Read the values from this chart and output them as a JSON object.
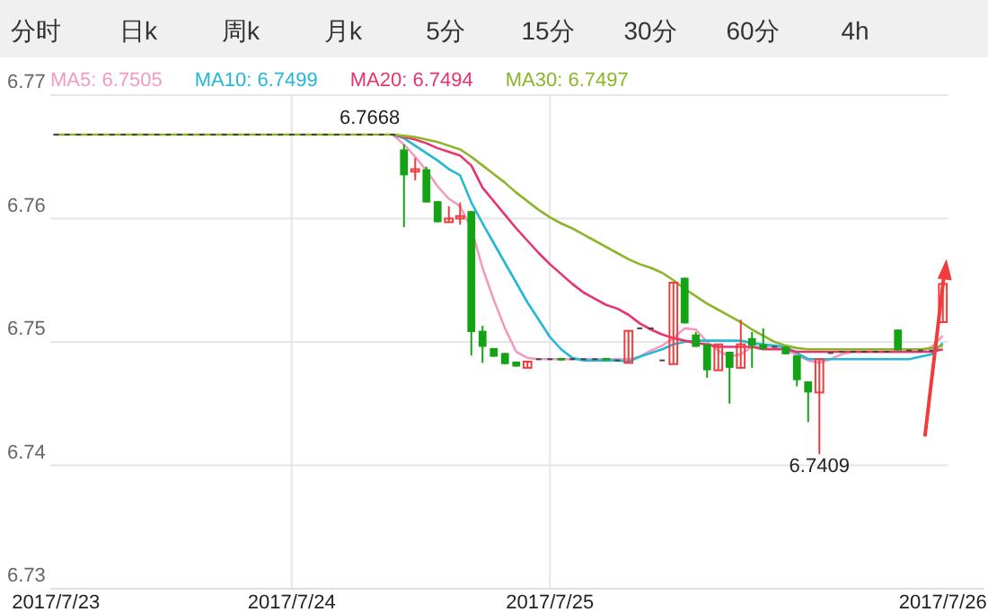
{
  "chart_data": [
    {
      "type": "other",
      "annotations": [
        "分时",
        "日k",
        "周k",
        "月k",
        "5分",
        "15分",
        "30分",
        "60分",
        "4h"
      ]
    },
    {
      "type": "candlestick",
      "ylim": [
        6.73,
        6.77
      ],
      "yticks": [
        6.73,
        6.74,
        6.75,
        6.76,
        6.77
      ],
      "grid": true,
      "legend": "top left",
      "categories": [
        "2017/7/23",
        null,
        null,
        null,
        null,
        null,
        null,
        null,
        null,
        null,
        null,
        null,
        null,
        null,
        null,
        null,
        null,
        null,
        null,
        null,
        null,
        "2017/7/24",
        null,
        null,
        null,
        null,
        null,
        null,
        null,
        null,
        null,
        null,
        null,
        null,
        null,
        null,
        null,
        null,
        null,
        null,
        null,
        null,
        null,
        null,
        "2017/7/25",
        null,
        null,
        null,
        null,
        null,
        null,
        null,
        null,
        null,
        null,
        null,
        null,
        null,
        null,
        null,
        null,
        null,
        null,
        null,
        null,
        null,
        null,
        null,
        null,
        null,
        null,
        null,
        null,
        null,
        null,
        null,
        null,
        null,
        null,
        "2017/7/26"
      ],
      "ohlc": [
        [
          6.7668,
          6.7668,
          6.7668,
          6.7668
        ],
        [
          6.7668,
          6.7668,
          6.7668,
          6.7668
        ],
        [
          6.7668,
          6.7668,
          6.7668,
          6.7668
        ],
        [
          6.7668,
          6.7668,
          6.7668,
          6.7668
        ],
        [
          6.7668,
          6.7668,
          6.7668,
          6.7668
        ],
        [
          6.7668,
          6.7668,
          6.7668,
          6.7668
        ],
        [
          6.7668,
          6.7668,
          6.7668,
          6.7668
        ],
        [
          6.7668,
          6.7668,
          6.7668,
          6.7668
        ],
        [
          6.7668,
          6.7668,
          6.7668,
          6.7668
        ],
        [
          6.7668,
          6.7668,
          6.7668,
          6.7668
        ],
        [
          6.7668,
          6.7668,
          6.7668,
          6.7668
        ],
        [
          6.7668,
          6.7668,
          6.7668,
          6.7668
        ],
        [
          6.7668,
          6.7668,
          6.7668,
          6.7668
        ],
        [
          6.7668,
          6.7668,
          6.7668,
          6.7668
        ],
        [
          6.7668,
          6.7668,
          6.7668,
          6.7668
        ],
        [
          6.7668,
          6.7668,
          6.7668,
          6.7668
        ],
        [
          6.7668,
          6.7668,
          6.7668,
          6.7668
        ],
        [
          6.7668,
          6.7668,
          6.7668,
          6.7668
        ],
        [
          6.7668,
          6.7668,
          6.7668,
          6.7668
        ],
        [
          6.7668,
          6.7668,
          6.7668,
          6.7668
        ],
        [
          6.7668,
          6.7668,
          6.7668,
          6.7668
        ],
        [
          6.7668,
          6.7668,
          6.7668,
          6.7668
        ],
        [
          6.7668,
          6.7668,
          6.7668,
          6.7668
        ],
        [
          6.7668,
          6.7668,
          6.7668,
          6.7668
        ],
        [
          6.7668,
          6.7668,
          6.7668,
          6.7668
        ],
        [
          6.7668,
          6.7668,
          6.7668,
          6.7668
        ],
        [
          6.7668,
          6.7668,
          6.7668,
          6.7668
        ],
        [
          6.7668,
          6.7668,
          6.7668,
          6.7668
        ],
        [
          6.7668,
          6.7668,
          6.7668,
          6.7668
        ],
        [
          6.7668,
          6.7668,
          6.7668,
          6.7668
        ],
        [
          6.7668,
          6.7668,
          6.7668,
          6.7668
        ],
        [
          6.7656,
          6.766,
          6.7593,
          6.7635
        ],
        [
          6.7638,
          6.7649,
          6.7631,
          6.764
        ],
        [
          6.764,
          6.7642,
          6.7613,
          6.7613
        ],
        [
          6.7614,
          6.7614,
          6.7597,
          6.7597
        ],
        [
          6.7597,
          6.761,
          6.7597,
          6.76
        ],
        [
          6.76,
          6.7613,
          6.7595,
          6.7602
        ],
        [
          6.7606,
          6.7606,
          6.7489,
          6.7508
        ],
        [
          6.7509,
          6.7513,
          6.7483,
          6.7496
        ],
        [
          6.7495,
          6.7495,
          6.7488,
          6.7488
        ],
        [
          6.7491,
          6.7491,
          6.7482,
          6.7482
        ],
        [
          6.7484,
          6.7484,
          6.748,
          6.748
        ],
        [
          6.7479,
          6.7484,
          6.7479,
          6.7484
        ],
        [
          6.7486,
          6.7486,
          6.7486,
          6.7486
        ],
        [
          6.7486,
          6.7486,
          6.7486,
          6.7486
        ],
        [
          6.7487,
          6.7487,
          6.7485,
          6.7485
        ],
        [
          6.7486,
          6.7486,
          6.7486,
          6.7486
        ],
        [
          6.7486,
          6.7486,
          6.7486,
          6.7486
        ],
        [
          6.7486,
          6.7486,
          6.7486,
          6.7486
        ],
        [
          6.7487,
          6.7487,
          6.7485,
          6.7485
        ],
        [
          6.7485,
          6.7485,
          6.7485,
          6.7485
        ],
        [
          6.7483,
          6.7509,
          6.7483,
          6.7509
        ],
        [
          6.7511,
          6.7511,
          6.7511,
          6.7511
        ],
        [
          6.7511,
          6.7511,
          6.7511,
          6.7511
        ],
        [
          6.7485,
          6.7485,
          6.7485,
          6.7485
        ],
        [
          6.7482,
          6.7548,
          6.7482,
          6.7548
        ],
        [
          6.7552,
          6.7552,
          6.7515,
          6.7515
        ],
        [
          6.7506,
          6.7508,
          6.7496,
          6.7496
        ],
        [
          6.7498,
          6.7498,
          6.7471,
          6.7477
        ],
        [
          6.7477,
          6.7498,
          6.7477,
          6.7498
        ],
        [
          6.7492,
          6.7492,
          6.745,
          6.7479
        ],
        [
          6.7479,
          6.7518,
          6.7479,
          6.7498
        ],
        [
          6.7503,
          6.7508,
          6.7479,
          6.7497
        ],
        [
          6.7498,
          6.7511,
          6.7494,
          6.7494
        ],
        [
          6.7496,
          6.7496,
          6.7496,
          6.7496
        ],
        [
          6.7496,
          6.7496,
          6.749,
          6.749
        ],
        [
          6.7489,
          6.7489,
          6.7464,
          6.7469
        ],
        [
          6.7468,
          6.7468,
          6.7435,
          6.7459
        ],
        [
          6.7459,
          6.7486,
          6.7409,
          6.7486
        ],
        [
          6.7491,
          6.7491,
          6.7491,
          6.7491
        ],
        [
          6.7492,
          6.7492,
          6.7492,
          6.7492
        ],
        [
          6.7492,
          6.7492,
          6.7492,
          6.7492
        ],
        [
          6.7492,
          6.7492,
          6.7492,
          6.7492
        ],
        [
          6.7492,
          6.7492,
          6.7492,
          6.7492
        ],
        [
          6.7492,
          6.7492,
          6.7492,
          6.7492
        ],
        [
          6.751,
          6.751,
          6.7493,
          6.7493
        ],
        [
          6.7493,
          6.7493,
          6.7493,
          6.7493
        ],
        [
          6.7493,
          6.7493,
          6.7493,
          6.7493
        ],
        [
          6.7493,
          6.7493,
          6.7493,
          6.7493
        ],
        [
          6.7516,
          6.7547,
          6.7516,
          6.7547
        ]
      ],
      "series": [
        {
          "name": "MA5: 6.7505",
          "color": "#f59abf",
          "type": "line",
          "values": [
            null,
            null,
            null,
            null,
            null,
            null,
            null,
            null,
            null,
            null,
            null,
            null,
            null,
            null,
            null,
            null,
            null,
            null,
            null,
            null,
            null,
            null,
            null,
            null,
            null,
            null,
            null,
            null,
            null,
            null,
            6.7668,
            6.766,
            6.765,
            6.7639,
            6.7626,
            6.7616,
            6.761,
            6.7592,
            6.756,
            6.7534,
            6.7511,
            6.7492,
            6.7487,
            6.7486,
            6.7486,
            6.7486,
            6.7486,
            6.7486,
            6.7486,
            6.7486,
            6.7486,
            6.7486,
            6.7488,
            6.7493,
            6.7497,
            6.7503,
            6.7511,
            6.751,
            6.75,
            6.7493,
            6.7488,
            6.749,
            6.7496,
            6.7496,
            6.7496,
            6.7494,
            6.7489,
            6.7485,
            6.7483,
            6.7486,
            6.749,
            6.7492,
            6.7492,
            6.7492,
            6.7492,
            6.7492,
            6.7492,
            6.7492,
            6.7496,
            6.7505
          ]
        },
        {
          "name": "MA10: 6.7499",
          "color": "#22b8d6",
          "type": "line",
          "values": [
            null,
            null,
            null,
            null,
            null,
            null,
            null,
            null,
            null,
            null,
            null,
            null,
            null,
            null,
            null,
            null,
            null,
            null,
            null,
            null,
            null,
            null,
            null,
            null,
            null,
            null,
            null,
            null,
            null,
            null,
            6.7668,
            6.7665,
            6.7659,
            6.7653,
            6.7647,
            6.764,
            6.7635,
            6.7613,
            6.7596,
            6.758,
            6.7564,
            6.7548,
            6.7532,
            6.7518,
            6.7504,
            6.7494,
            6.7487,
            6.7485,
            6.7485,
            6.7485,
            6.7485,
            6.7484,
            6.7488,
            6.7491,
            6.7494,
            6.7498,
            6.75,
            6.7501,
            6.7501,
            6.7501,
            6.7501,
            6.7501,
            6.7499,
            6.7498,
            6.7497,
            6.7496,
            6.7491,
            6.7486,
            6.7486,
            6.7486,
            6.7486,
            6.7486,
            6.7486,
            6.7486,
            6.7486,
            6.7486,
            6.7486,
            6.7488,
            6.749,
            6.7499
          ]
        },
        {
          "name": "MA20: 6.7494",
          "color": "#e8336d",
          "type": "line",
          "values": [
            null,
            null,
            null,
            null,
            null,
            null,
            null,
            null,
            null,
            null,
            null,
            null,
            null,
            null,
            null,
            null,
            null,
            null,
            null,
            null,
            null,
            null,
            null,
            null,
            null,
            null,
            null,
            null,
            null,
            null,
            6.7668,
            6.7666,
            6.7664,
            6.7661,
            6.7657,
            6.7654,
            6.7651,
            6.7643,
            6.7625,
            6.7614,
            6.7603,
            6.7592,
            6.7582,
            6.7572,
            6.7563,
            6.7555,
            6.7547,
            6.754,
            6.7535,
            6.753,
            6.7527,
            6.7522,
            6.7515,
            6.751,
            6.7506,
            6.7503,
            6.7501,
            6.7499,
            6.7498,
            6.7496,
            6.7496,
            6.7496,
            6.7496,
            6.7494,
            6.7494,
            6.7494,
            6.7492,
            6.7492,
            6.7492,
            6.7492,
            6.7492,
            6.7492,
            6.7492,
            6.7492,
            6.7492,
            6.7492,
            6.7492,
            6.7492,
            6.7492,
            6.7494
          ]
        },
        {
          "name": "MA30: 6.7497",
          "color": "#8db52a",
          "type": "line",
          "values": [
            6.7668,
            6.7668,
            6.7668,
            6.7668,
            6.7668,
            6.7668,
            6.7668,
            6.7668,
            6.7668,
            6.7668,
            6.7668,
            6.7668,
            6.7668,
            6.7668,
            6.7668,
            6.7668,
            6.7668,
            6.7668,
            6.7668,
            6.7668,
            6.7668,
            6.7668,
            6.7668,
            6.7668,
            6.7668,
            6.7668,
            6.7668,
            6.7668,
            6.7668,
            6.7668,
            6.7668,
            6.7667,
            6.7666,
            6.7664,
            6.7662,
            6.7659,
            6.7656,
            6.765,
            6.7643,
            6.7636,
            6.7629,
            6.7621,
            6.7614,
            6.7607,
            6.7601,
            6.7596,
            6.7592,
            6.7587,
            6.7582,
            6.7577,
            6.7572,
            6.7567,
            6.7563,
            6.756,
            6.7556,
            6.755,
            6.7543,
            6.7537,
            6.7531,
            6.7526,
            6.7521,
            6.7516,
            6.751,
            6.7505,
            6.75,
            6.7497,
            6.7495,
            6.7494,
            6.7494,
            6.7494,
            6.7494,
            6.7494,
            6.7494,
            6.7494,
            6.7494,
            6.7494,
            6.7494,
            6.7494,
            6.7495,
            6.7497
          ]
        }
      ],
      "annotations": [
        {
          "text": "6.7668",
          "y": 6.7668
        },
        {
          "text": "6.7409",
          "y": 6.7409
        }
      ]
    }
  ]
}
